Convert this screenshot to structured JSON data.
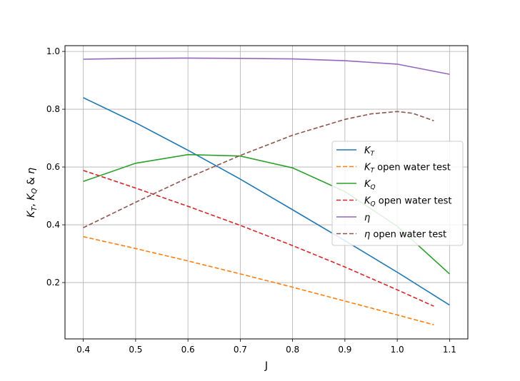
{
  "chart_data": {
    "type": "line",
    "title": "",
    "xlabel": "J",
    "ylabel_parts": [
      {
        "t": "K",
        "style": "italic"
      },
      {
        "t": "T",
        "style": "sub"
      },
      {
        "t": ", ",
        "style": "normal"
      },
      {
        "t": "K",
        "style": "italic"
      },
      {
        "t": "Q",
        "style": "sub"
      },
      {
        "t": " & ",
        "style": "normal"
      },
      {
        "t": "η",
        "style": "italic"
      }
    ],
    "xlim": [
      0.365,
      1.135
    ],
    "ylim": [
      0.005,
      1.02
    ],
    "xticks": [
      0.4,
      0.5,
      0.6,
      0.7,
      0.8,
      0.9,
      1.0,
      1.1
    ],
    "xtick_labels": [
      "0.4",
      "0.5",
      "0.6",
      "0.7",
      "0.8",
      "0.9",
      "1.0",
      "1.1"
    ],
    "yticks": [
      0.2,
      0.4,
      0.6,
      0.8,
      1.0
    ],
    "ytick_labels": [
      "0.2",
      "0.4",
      "0.6",
      "0.8",
      "1.0"
    ],
    "grid": true,
    "legend_position": "center-right",
    "series": [
      {
        "name_parts": [
          {
            "t": "K",
            "style": "italic"
          },
          {
            "t": "T",
            "style": "sub"
          }
        ],
        "color": "#1f77b4",
        "dash": false,
        "x": [
          0.4,
          0.5,
          0.6,
          0.7,
          0.8,
          0.9,
          1.0,
          1.1
        ],
        "y": [
          0.84,
          0.753,
          0.658,
          0.558,
          0.452,
          0.345,
          0.236,
          0.122
        ]
      },
      {
        "name_parts": [
          {
            "t": "K",
            "style": "italic"
          },
          {
            "t": "T",
            "style": "sub"
          },
          {
            "t": " open water test",
            "style": "normal"
          }
        ],
        "color": "#ff7f0e",
        "dash": true,
        "x": [
          0.4,
          0.5,
          0.6,
          0.7,
          0.8,
          0.9,
          1.0,
          1.07
        ],
        "y": [
          0.359,
          0.318,
          0.275,
          0.23,
          0.184,
          0.136,
          0.088,
          0.054
        ]
      },
      {
        "name_parts": [
          {
            "t": "K",
            "style": "italic"
          },
          {
            "t": "Q",
            "style": "sub"
          }
        ],
        "color": "#2ca02c",
        "dash": false,
        "x": [
          0.4,
          0.5,
          0.6,
          0.7,
          0.8,
          0.9,
          1.0,
          1.1
        ],
        "y": [
          0.55,
          0.613,
          0.643,
          0.638,
          0.597,
          0.515,
          0.395,
          0.23
        ]
      },
      {
        "name_parts": [
          {
            "t": "K",
            "style": "italic"
          },
          {
            "t": "Q",
            "style": "sub"
          },
          {
            "t": " open water test",
            "style": "normal"
          }
        ],
        "color": "#d62728",
        "dash": true,
        "x": [
          0.4,
          0.5,
          0.6,
          0.7,
          0.8,
          0.9,
          1.0,
          1.07
        ],
        "y": [
          0.588,
          0.527,
          0.464,
          0.398,
          0.328,
          0.254,
          0.175,
          0.118
        ]
      },
      {
        "name_parts": [
          {
            "t": "η",
            "style": "italic"
          }
        ],
        "color": "#9467bd",
        "dash": false,
        "x": [
          0.4,
          0.5,
          0.6,
          0.7,
          0.8,
          0.9,
          1.0,
          1.1
        ],
        "y": [
          0.973,
          0.976,
          0.977,
          0.976,
          0.974,
          0.968,
          0.956,
          0.921
        ]
      },
      {
        "name_parts": [
          {
            "t": "η",
            "style": "italic"
          },
          {
            "t": " open water test",
            "style": "normal"
          }
        ],
        "color": "#8c564b",
        "dash": true,
        "x": [
          0.4,
          0.5,
          0.6,
          0.7,
          0.8,
          0.9,
          0.95,
          1.0,
          1.03,
          1.07
        ],
        "y": [
          0.39,
          0.478,
          0.563,
          0.64,
          0.71,
          0.765,
          0.784,
          0.792,
          0.786,
          0.76
        ]
      }
    ]
  }
}
